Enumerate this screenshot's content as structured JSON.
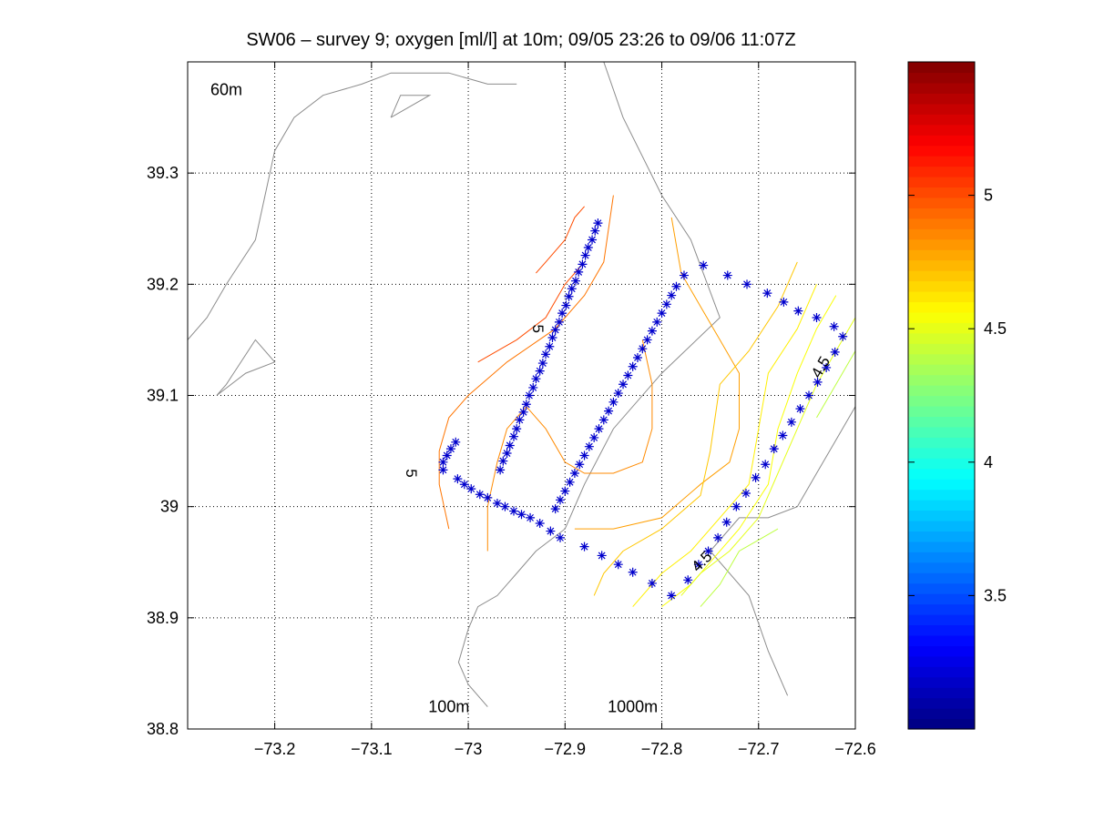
{
  "chart_data": {
    "type": "contour",
    "title": "SW06 – survey 9; oxygen [ml/l] at 10m; 09/05 23:26 to 09/06 11:07Z",
    "xlabel": "",
    "ylabel": "",
    "xlim": [
      -73.29,
      -72.6
    ],
    "ylim": [
      38.8,
      39.4
    ],
    "grid": true,
    "xticks": [
      {
        "value": -73.2,
        "label": "−73.2"
      },
      {
        "value": -73.1,
        "label": "−73.1"
      },
      {
        "value": -73.0,
        "label": "−73"
      },
      {
        "value": -72.9,
        "label": "−72.9"
      },
      {
        "value": -72.8,
        "label": "−72.8"
      },
      {
        "value": -72.7,
        "label": "−72.7"
      },
      {
        "value": -72.6,
        "label": "−72.6"
      }
    ],
    "yticks": [
      {
        "value": 38.8,
        "label": "38.8"
      },
      {
        "value": 38.9,
        "label": "38.9"
      },
      {
        "value": 39.0,
        "label": "39"
      },
      {
        "value": 39.1,
        "label": "39.1"
      },
      {
        "value": 39.2,
        "label": "39.2"
      },
      {
        "value": 39.3,
        "label": "39.3"
      }
    ],
    "bathymetry_labels": [
      {
        "text": "60m",
        "x": -73.25,
        "y": 39.37
      },
      {
        "text": "100m",
        "x": -73.02,
        "y": 38.815
      },
      {
        "text": "1000m",
        "x": -72.83,
        "y": 38.815
      }
    ],
    "bathymetry_contours": [
      {
        "name": "60m",
        "points": [
          [
            -73.29,
            39.15
          ],
          [
            -73.27,
            39.17
          ],
          [
            -73.25,
            39.2
          ],
          [
            -73.22,
            39.24
          ],
          [
            -73.21,
            39.28
          ],
          [
            -73.2,
            39.32
          ],
          [
            -73.18,
            39.35
          ],
          [
            -73.15,
            39.37
          ],
          [
            -73.11,
            39.38
          ],
          [
            -73.08,
            39.39
          ],
          [
            -73.05,
            39.39
          ],
          [
            -73.02,
            39.39
          ],
          [
            -72.98,
            39.38
          ],
          [
            -72.95,
            39.38
          ]
        ]
      },
      {
        "name": "100m",
        "points": [
          [
            -72.86,
            39.4
          ],
          [
            -72.84,
            39.35
          ],
          [
            -72.8,
            39.28
          ],
          [
            -72.77,
            39.24
          ],
          [
            -72.74,
            39.17
          ],
          [
            -72.8,
            39.12
          ],
          [
            -72.85,
            39.07
          ],
          [
            -72.88,
            39.02
          ],
          [
            -72.9,
            38.98
          ],
          [
            -72.93,
            38.96
          ],
          [
            -72.95,
            38.94
          ],
          [
            -72.97,
            38.92
          ],
          [
            -72.99,
            38.91
          ],
          [
            -73.0,
            38.89
          ],
          [
            -73.01,
            38.86
          ],
          [
            -73.0,
            38.84
          ],
          [
            -72.98,
            38.82
          ]
        ]
      },
      {
        "name": "1000m",
        "points": [
          [
            -72.67,
            38.83
          ],
          [
            -72.69,
            38.87
          ],
          [
            -72.71,
            38.92
          ],
          [
            -72.75,
            38.96
          ],
          [
            -72.72,
            38.99
          ],
          [
            -72.69,
            38.99
          ],
          [
            -72.66,
            39.0
          ],
          [
            -72.64,
            39.03
          ],
          [
            -72.62,
            39.06
          ],
          [
            -72.6,
            39.09
          ]
        ]
      },
      {
        "name": "",
        "points": [
          [
            -73.26,
            39.1
          ],
          [
            -73.23,
            39.12
          ],
          [
            -73.2,
            39.13
          ],
          [
            -73.22,
            39.15
          ],
          [
            -73.25,
            39.11
          ],
          [
            -73.26,
            39.1
          ]
        ]
      },
      {
        "name": "",
        "points": [
          [
            -73.08,
            39.35
          ],
          [
            -73.07,
            39.37
          ],
          [
            -73.04,
            39.37
          ],
          [
            -73.06,
            39.36
          ],
          [
            -73.08,
            39.35
          ]
        ]
      }
    ],
    "colorbar": {
      "min": 3.0,
      "max": 5.5,
      "ticks": [
        {
          "value": 3.5,
          "label": "3.5"
        },
        {
          "value": 4.0,
          "label": "4"
        },
        {
          "value": 4.5,
          "label": "4.5"
        },
        {
          "value": 5.0,
          "label": "5"
        }
      ],
      "colormap": "jet"
    },
    "contour_labels": [
      {
        "text": "5",
        "x": -72.929,
        "y": 39.16,
        "angle": 90
      },
      {
        "text": "5",
        "x": -73.06,
        "y": 39.03,
        "angle": 90
      },
      {
        "text": "4.5",
        "x": -72.635,
        "y": 39.125,
        "angle": -60
      },
      {
        "text": "4.5",
        "x": -72.758,
        "y": 38.95,
        "angle": -45
      }
    ],
    "oxygen_contours": [
      {
        "level": 5.0,
        "points": [
          [
            -72.88,
            39.22
          ],
          [
            -72.9,
            39.2
          ],
          [
            -72.92,
            39.17
          ],
          [
            -72.95,
            39.15
          ],
          [
            -72.99,
            39.13
          ]
        ]
      },
      {
        "level": 5.0,
        "points": [
          [
            -72.88,
            39.27
          ],
          [
            -72.89,
            39.26
          ],
          [
            -72.9,
            39.24
          ],
          [
            -72.92,
            39.22
          ],
          [
            -72.93,
            39.21
          ]
        ]
      },
      {
        "level": 4.9,
        "points": [
          [
            -72.85,
            39.28
          ],
          [
            -72.86,
            39.22
          ],
          [
            -72.88,
            39.19
          ],
          [
            -72.91,
            39.16
          ],
          [
            -72.96,
            39.13
          ],
          [
            -73.0,
            39.1
          ],
          [
            -73.02,
            39.08
          ],
          [
            -73.03,
            39.05
          ],
          [
            -73.03,
            39.02
          ],
          [
            -73.02,
            38.98
          ]
        ]
      },
      {
        "level": 4.85,
        "points": [
          [
            -72.98,
            38.96
          ],
          [
            -72.98,
            39.0
          ],
          [
            -72.97,
            39.04
          ],
          [
            -72.96,
            39.07
          ],
          [
            -72.94,
            39.09
          ],
          [
            -72.92,
            39.07
          ],
          [
            -72.9,
            39.04
          ],
          [
            -72.88,
            39.03
          ],
          [
            -72.85,
            39.03
          ],
          [
            -72.82,
            39.04
          ],
          [
            -72.81,
            39.07
          ],
          [
            -72.81,
            39.11
          ],
          [
            -72.82,
            39.15
          ]
        ]
      },
      {
        "level": 4.8,
        "points": [
          [
            -72.79,
            39.26
          ],
          [
            -72.78,
            39.21
          ],
          [
            -72.76,
            39.18
          ],
          [
            -72.74,
            39.15
          ],
          [
            -72.72,
            39.12
          ],
          [
            -72.72,
            39.07
          ],
          [
            -72.73,
            39.04
          ],
          [
            -72.76,
            39.02
          ],
          [
            -72.8,
            38.99
          ],
          [
            -72.85,
            38.98
          ],
          [
            -72.89,
            38.98
          ]
        ]
      },
      {
        "level": 4.7,
        "points": [
          [
            -72.66,
            39.22
          ],
          [
            -72.68,
            39.18
          ],
          [
            -72.71,
            39.14
          ],
          [
            -72.74,
            39.11
          ],
          [
            -72.75,
            39.05
          ],
          [
            -72.76,
            39.01
          ],
          [
            -72.8,
            38.98
          ],
          [
            -72.84,
            38.96
          ],
          [
            -72.86,
            38.94
          ],
          [
            -72.87,
            38.92
          ]
        ]
      },
      {
        "level": 4.6,
        "points": [
          [
            -72.64,
            39.2
          ],
          [
            -72.66,
            39.16
          ],
          [
            -72.69,
            39.12
          ],
          [
            -72.7,
            39.07
          ],
          [
            -72.71,
            39.02
          ],
          [
            -72.74,
            38.99
          ],
          [
            -72.77,
            38.96
          ],
          [
            -72.8,
            38.94
          ],
          [
            -72.83,
            38.91
          ]
        ]
      },
      {
        "level": 4.55,
        "points": [
          [
            -72.62,
            39.19
          ],
          [
            -72.64,
            39.16
          ],
          [
            -72.66,
            39.12
          ],
          [
            -72.68,
            39.07
          ],
          [
            -72.69,
            39.02
          ],
          [
            -72.72,
            38.98
          ],
          [
            -72.75,
            38.95
          ],
          [
            -72.77,
            38.93
          ],
          [
            -72.8,
            38.91
          ]
        ]
      },
      {
        "level": 4.5,
        "points": [
          [
            -72.6,
            39.17
          ],
          [
            -72.62,
            39.14
          ],
          [
            -72.64,
            39.11
          ],
          [
            -72.66,
            39.07
          ],
          [
            -72.68,
            39.03
          ],
          [
            -72.7,
            38.99
          ],
          [
            -72.73,
            38.96
          ],
          [
            -72.76,
            38.94
          ],
          [
            -72.78,
            38.92
          ]
        ]
      },
      {
        "level": 4.4,
        "points": [
          [
            -72.6,
            39.14
          ],
          [
            -72.62,
            39.11
          ],
          [
            -72.64,
            39.08
          ]
        ]
      },
      {
        "level": 4.4,
        "points": [
          [
            -72.68,
            38.98
          ],
          [
            -72.7,
            38.97
          ],
          [
            -72.72,
            38.96
          ],
          [
            -72.74,
            38.93
          ],
          [
            -72.76,
            38.91
          ]
        ]
      }
    ],
    "stations": [
      [
        -72.866,
        39.255
      ],
      [
        -72.869,
        39.248
      ],
      [
        -72.872,
        39.24
      ],
      [
        -72.876,
        39.233
      ],
      [
        -72.879,
        39.226
      ],
      [
        -72.882,
        39.218
      ],
      [
        -72.886,
        39.211
      ],
      [
        -72.889,
        39.203
      ],
      [
        -72.893,
        39.196
      ],
      [
        -72.896,
        39.189
      ],
      [
        -72.899,
        39.181
      ],
      [
        -72.903,
        39.174
      ],
      [
        -72.906,
        39.166
      ],
      [
        -72.91,
        39.159
      ],
      [
        -72.913,
        39.152
      ],
      [
        -72.916,
        39.144
      ],
      [
        -72.92,
        39.137
      ],
      [
        -72.923,
        39.129
      ],
      [
        -72.926,
        39.122
      ],
      [
        -72.93,
        39.115
      ],
      [
        -72.933,
        39.107
      ],
      [
        -72.937,
        39.1
      ],
      [
        -72.94,
        39.092
      ],
      [
        -72.943,
        39.085
      ],
      [
        -72.947,
        39.078
      ],
      [
        -72.95,
        39.07
      ],
      [
        -72.953,
        39.063
      ],
      [
        -72.957,
        39.055
      ],
      [
        -72.96,
        39.048
      ],
      [
        -72.964,
        39.041
      ],
      [
        -72.967,
        39.033
      ],
      [
        -73.026,
        39.033
      ],
      [
        -73.011,
        39.025
      ],
      [
        -73.004,
        39.02
      ],
      [
        -72.997,
        39.016
      ],
      [
        -72.988,
        39.011
      ],
      [
        -72.98,
        39.008
      ],
      [
        -72.97,
        39.003
      ],
      [
        -72.962,
        39.0
      ],
      [
        -72.953,
        38.996
      ],
      [
        -72.945,
        38.993
      ],
      [
        -72.936,
        38.99
      ],
      [
        -72.926,
        38.985
      ],
      [
        -72.915,
        38.978
      ],
      [
        -72.905,
        38.972
      ],
      [
        -72.88,
        38.964
      ],
      [
        -72.862,
        38.956
      ],
      [
        -72.845,
        38.948
      ],
      [
        -72.83,
        38.941
      ],
      [
        -72.81,
        38.931
      ],
      [
        -72.79,
        38.92
      ],
      [
        -72.773,
        38.934
      ],
      [
        -72.762,
        38.948
      ],
      [
        -72.752,
        38.96
      ],
      [
        -72.742,
        38.972
      ],
      [
        -72.733,
        38.986
      ],
      [
        -72.723,
        39.0
      ],
      [
        -72.713,
        39.012
      ],
      [
        -72.703,
        39.026
      ],
      [
        -72.693,
        39.038
      ],
      [
        -72.684,
        39.052
      ],
      [
        -72.675,
        39.064
      ],
      [
        -72.666,
        39.076
      ],
      [
        -72.657,
        39.088
      ],
      [
        -72.648,
        39.1
      ],
      [
        -72.639,
        39.112
      ],
      [
        -72.63,
        39.125
      ],
      [
        -72.621,
        39.139
      ],
      [
        -72.613,
        39.153
      ],
      [
        -72.622,
        39.162
      ],
      [
        -72.64,
        39.17
      ],
      [
        -72.659,
        39.176
      ],
      [
        -72.674,
        39.184
      ],
      [
        -72.691,
        39.192
      ],
      [
        -72.712,
        39.2
      ],
      [
        -72.732,
        39.208
      ],
      [
        -72.757,
        39.217
      ],
      [
        -72.777,
        39.208
      ],
      [
        -72.785,
        39.198
      ],
      [
        -72.79,
        39.19
      ],
      [
        -72.795,
        39.182
      ],
      [
        -72.8,
        39.174
      ],
      [
        -72.805,
        39.166
      ],
      [
        -72.81,
        39.158
      ],
      [
        -72.815,
        39.15
      ],
      [
        -72.82,
        39.142
      ],
      [
        -72.825,
        39.134
      ],
      [
        -72.83,
        39.126
      ],
      [
        -72.835,
        39.118
      ],
      [
        -72.84,
        39.11
      ],
      [
        -72.845,
        39.102
      ],
      [
        -72.85,
        39.094
      ],
      [
        -72.855,
        39.086
      ],
      [
        -72.86,
        39.078
      ],
      [
        -72.865,
        39.07
      ],
      [
        -72.87,
        39.062
      ],
      [
        -72.875,
        39.054
      ],
      [
        -72.88,
        39.046
      ],
      [
        -72.885,
        39.038
      ],
      [
        -72.89,
        39.03
      ],
      [
        -72.895,
        39.022
      ],
      [
        -72.9,
        39.014
      ],
      [
        -72.905,
        39.006
      ],
      [
        -72.91,
        38.998
      ],
      [
        -73.026,
        39.04
      ],
      [
        -73.022,
        39.046
      ],
      [
        -73.018,
        39.052
      ],
      [
        -73.013,
        39.058
      ]
    ]
  }
}
